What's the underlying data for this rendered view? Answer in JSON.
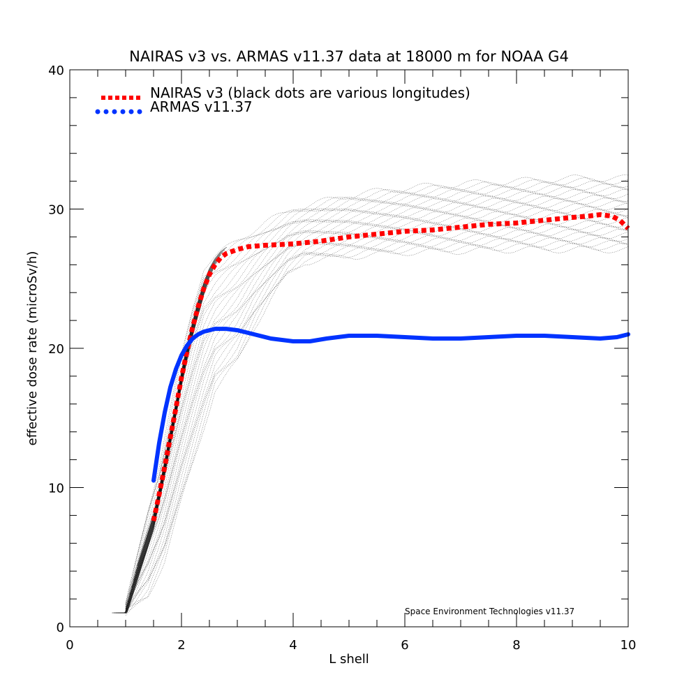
{
  "chart_data": {
    "type": "line",
    "title": "NAIRAS  v3 vs. ARMAS v11.37 data at 18000 m for NOAA G4",
    "xlabel": "L shell",
    "ylabel": "effective dose rate (microSv/h)",
    "xlim": [
      0,
      10
    ],
    "ylim": [
      0,
      40
    ],
    "x_ticks": [
      "0",
      "2",
      "4",
      "6",
      "8",
      "10"
    ],
    "y_ticks": [
      "0",
      "10",
      "20",
      "30",
      "40"
    ],
    "grid": false,
    "legend_position": "top-left",
    "annotation": "Space Environment Technologies v11.37",
    "series": [
      {
        "name": "NAIRAS v3 (black dots are various longitudes)",
        "color": "#ff0000",
        "style": "dotted",
        "x": [
          1.5,
          1.6,
          1.7,
          1.8,
          1.9,
          2.0,
          2.1,
          2.2,
          2.3,
          2.4,
          2.5,
          2.6,
          2.7,
          2.8,
          3.0,
          3.2,
          3.5,
          4.0,
          4.5,
          5.0,
          5.5,
          6.0,
          6.5,
          7.0,
          7.5,
          8.0,
          8.5,
          9.0,
          9.3,
          9.5,
          9.7,
          9.85,
          10.0
        ],
        "values": [
          7.6,
          9.5,
          11.5,
          13.6,
          15.7,
          17.9,
          19.8,
          21.5,
          23.0,
          24.3,
          25.3,
          26.0,
          26.5,
          26.8,
          27.1,
          27.3,
          27.4,
          27.5,
          27.7,
          28.0,
          28.2,
          28.4,
          28.5,
          28.7,
          28.9,
          29.0,
          29.2,
          29.4,
          29.5,
          29.6,
          29.5,
          29.2,
          28.6
        ]
      },
      {
        "name": "ARMAS v11.37",
        "color": "#0033ff",
        "style": "solid",
        "x": [
          1.5,
          1.6,
          1.7,
          1.8,
          1.9,
          2.0,
          2.1,
          2.2,
          2.3,
          2.4,
          2.5,
          2.6,
          2.8,
          3.0,
          3.3,
          3.6,
          4.0,
          4.3,
          4.6,
          5.0,
          5.5,
          6.0,
          6.5,
          7.0,
          7.5,
          8.0,
          8.5,
          9.0,
          9.5,
          9.8,
          10.0
        ],
        "values": [
          10.5,
          13.2,
          15.4,
          17.2,
          18.5,
          19.5,
          20.2,
          20.7,
          21.0,
          21.2,
          21.3,
          21.4,
          21.4,
          21.3,
          21.0,
          20.7,
          20.5,
          20.5,
          20.7,
          20.9,
          20.9,
          20.8,
          20.7,
          20.7,
          20.8,
          20.9,
          20.9,
          20.8,
          20.7,
          20.8,
          21.0
        ]
      }
    ],
    "longitude_scatter": {
      "color": "#000000",
      "lower_envelope": {
        "x": [
          1.0,
          1.2,
          1.4,
          1.7,
          2.0,
          2.3,
          2.6,
          3.0,
          3.3,
          3.6,
          3.9,
          4.2,
          5.0,
          6.0,
          7.0,
          8.0,
          9.0,
          10.0
        ],
        "values": [
          1.0,
          1.6,
          2.2,
          4.8,
          9.0,
          13.0,
          17.0,
          19.0,
          21.5,
          23.5,
          25.3,
          26.2,
          26.6,
          26.9,
          27.0,
          27.1,
          27.1,
          27.1
        ]
      },
      "upper_envelope": {
        "x": [
          1.0,
          1.2,
          1.4,
          1.6,
          1.8,
          2.0,
          2.2,
          2.4,
          2.6,
          3.0,
          3.5,
          4.0,
          5.0,
          6.0,
          7.0,
          8.0,
          9.0,
          10.0
        ],
        "values": [
          1.5,
          5.0,
          8.5,
          11.5,
          15.5,
          19.5,
          23.0,
          25.8,
          26.5,
          27.8,
          29.0,
          30.0,
          31.0,
          31.5,
          31.8,
          32.0,
          32.2,
          32.2
        ]
      }
    }
  }
}
